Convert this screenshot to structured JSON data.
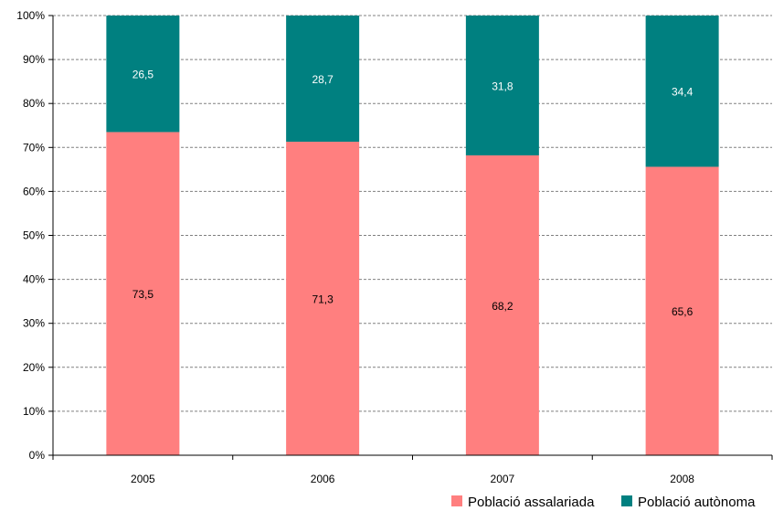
{
  "chart_data": {
    "type": "bar",
    "stacked": true,
    "categories": [
      "2005",
      "2006",
      "2007",
      "2008"
    ],
    "series": [
      {
        "name": "Població assalariada",
        "values": [
          73.5,
          71.3,
          68.2,
          65.6
        ],
        "labels": [
          "73,5",
          "71,3",
          "68,2",
          "65,6"
        ],
        "color": "#ff7f7f",
        "label_color": "#000000"
      },
      {
        "name": "Població autònoma",
        "values": [
          26.5,
          28.7,
          31.8,
          34.4
        ],
        "labels": [
          "26,5",
          "28,7",
          "31,8",
          "34,4"
        ],
        "color": "#008080",
        "label_color": "#ffffff"
      }
    ],
    "ylim": [
      0,
      100
    ],
    "yticks": [
      "0%",
      "10%",
      "20%",
      "30%",
      "40%",
      "50%",
      "60%",
      "70%",
      "80%",
      "90%",
      "100%"
    ],
    "grid": true,
    "legend_position": "bottom-right"
  }
}
